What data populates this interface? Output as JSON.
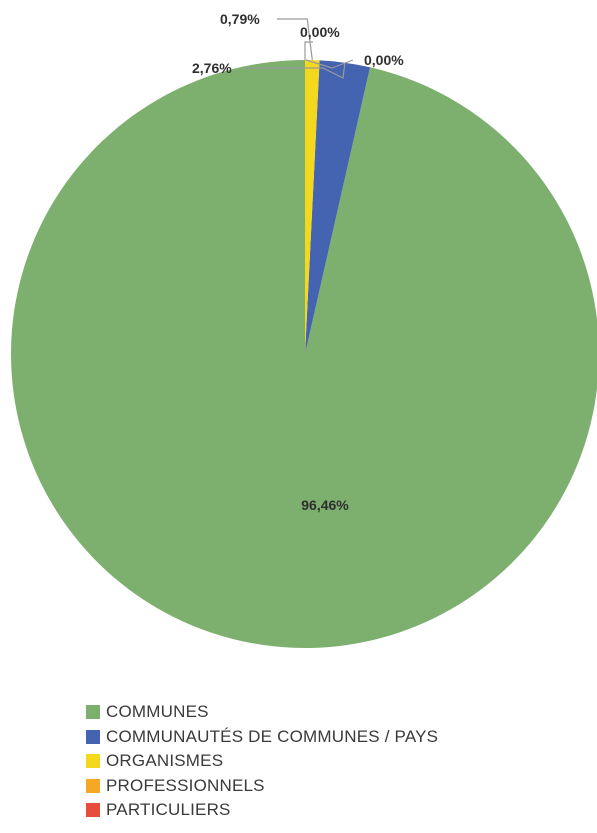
{
  "chart_data": {
    "type": "pie",
    "series": [
      {
        "name": "COMMUNES",
        "value": 96.46,
        "label": "96,46%",
        "color": "#7DAF6E"
      },
      {
        "name": "COMMUNAUTÉS DE COMMUNES / PAYS",
        "value": 2.76,
        "label": "2,76%",
        "color": "#4463B0"
      },
      {
        "name": "ORGANISMES",
        "value": 0.79,
        "label": "0,79%",
        "color": "#F4D81E"
      },
      {
        "name": "PROFESSIONNELS",
        "value": 0.0,
        "label": "0,00%",
        "color": "#F5A823"
      },
      {
        "name": "PARTICULIERS",
        "value": 0.0,
        "label": "0,00%",
        "color": "#E74C3C"
      }
    ],
    "legend_position": "bottom"
  }
}
